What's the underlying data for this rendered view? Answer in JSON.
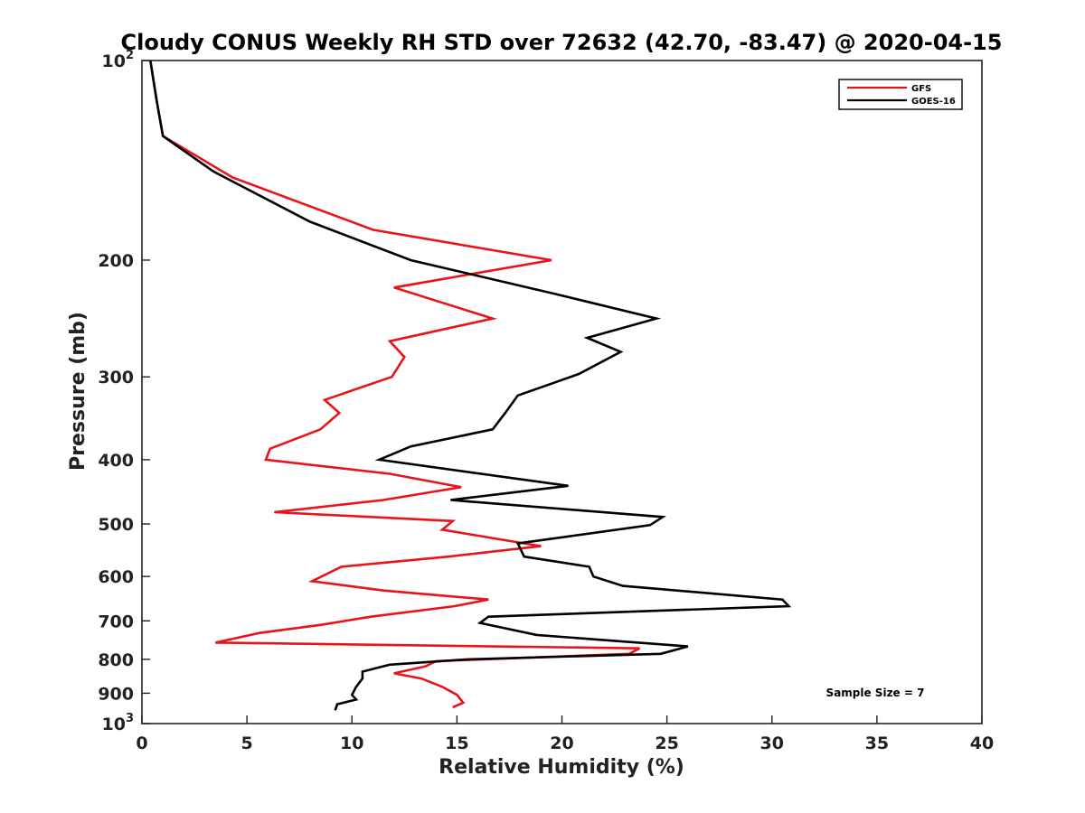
{
  "chart_data": {
    "type": "line",
    "title": "Cloudy CONUS Weekly RH STD over 72632 (42.70, -83.47) @ 2020-04-15",
    "xlabel": "Relative Humidity (%)",
    "ylabel": "Pressure (mb)",
    "xlim": [
      0,
      40
    ],
    "ylim": [
      100,
      1000
    ],
    "y_scale": "log",
    "y_inverted": true,
    "grid": false,
    "legend_position": "top-right",
    "x_ticks": [
      "0",
      "5",
      "10",
      "15",
      "20",
      "25",
      "30",
      "35",
      "40"
    ],
    "y_ticks": [
      {
        "value": 100,
        "base": "10",
        "exp": "2"
      },
      {
        "value": 200,
        "label": "200"
      },
      {
        "value": 300,
        "label": "300"
      },
      {
        "value": 400,
        "label": "400"
      },
      {
        "value": 500,
        "label": "500"
      },
      {
        "value": 600,
        "label": "600"
      },
      {
        "value": 700,
        "label": "700"
      },
      {
        "value": 800,
        "label": "800"
      },
      {
        "value": 900,
        "label": "900"
      },
      {
        "value": 1000,
        "base": "10",
        "exp": "3"
      }
    ],
    "series": [
      {
        "name": "GFS",
        "color": "#e8141a",
        "points": [
          [
            0.4,
            100
          ],
          [
            0.7,
            115
          ],
          [
            1.0,
            130
          ],
          [
            4.3,
            150
          ],
          [
            11.0,
            180
          ],
          [
            19.5,
            200
          ],
          [
            12.0,
            220
          ],
          [
            16.7,
            245
          ],
          [
            11.8,
            265
          ],
          [
            12.5,
            280
          ],
          [
            11.9,
            300
          ],
          [
            8.7,
            325
          ],
          [
            9.4,
            340
          ],
          [
            8.5,
            360
          ],
          [
            6.1,
            385
          ],
          [
            5.9,
            400
          ],
          [
            11.8,
            420
          ],
          [
            15.2,
            440
          ],
          [
            11.5,
            460
          ],
          [
            6.3,
            480
          ],
          [
            14.8,
            495
          ],
          [
            14.3,
            510
          ],
          [
            19.0,
            540
          ],
          [
            14.6,
            560
          ],
          [
            9.5,
            580
          ],
          [
            8.1,
            610
          ],
          [
            11.5,
            630
          ],
          [
            16.5,
            650
          ],
          [
            14.9,
            665
          ],
          [
            10.9,
            690
          ],
          [
            8.5,
            710
          ],
          [
            5.6,
            730
          ],
          [
            3.5,
            755
          ],
          [
            23.7,
            770
          ],
          [
            23.2,
            785
          ],
          [
            14.0,
            805
          ],
          [
            13.5,
            820
          ],
          [
            12.0,
            840
          ],
          [
            13.3,
            855
          ],
          [
            14.3,
            880
          ],
          [
            15.0,
            905
          ],
          [
            15.3,
            930
          ],
          [
            14.8,
            945
          ]
        ]
      },
      {
        "name": "GOES-16",
        "color": "#000000",
        "points": [
          [
            0.4,
            100
          ],
          [
            0.7,
            115
          ],
          [
            1.0,
            130
          ],
          [
            3.4,
            147
          ],
          [
            8.0,
            175
          ],
          [
            12.8,
            200
          ],
          [
            19.7,
            225
          ],
          [
            24.5,
            245
          ],
          [
            21.2,
            262
          ],
          [
            22.8,
            275
          ],
          [
            20.8,
            297
          ],
          [
            17.9,
            320
          ],
          [
            17.3,
            340
          ],
          [
            16.7,
            360
          ],
          [
            12.8,
            382
          ],
          [
            11.3,
            400
          ],
          [
            20.3,
            438
          ],
          [
            14.7,
            460
          ],
          [
            24.8,
            488
          ],
          [
            24.2,
            502
          ],
          [
            17.9,
            535
          ],
          [
            18.2,
            560
          ],
          [
            21.3,
            580
          ],
          [
            21.5,
            600
          ],
          [
            22.9,
            620
          ],
          [
            30.5,
            650
          ],
          [
            30.8,
            665
          ],
          [
            16.5,
            690
          ],
          [
            16.1,
            705
          ],
          [
            18.8,
            735
          ],
          [
            26.0,
            765
          ],
          [
            24.7,
            785
          ],
          [
            15.5,
            800
          ],
          [
            11.8,
            815
          ],
          [
            10.5,
            835
          ],
          [
            10.5,
            855
          ],
          [
            10.2,
            880
          ],
          [
            10.0,
            905
          ],
          [
            10.2,
            920
          ],
          [
            9.3,
            935
          ],
          [
            9.2,
            955
          ]
        ]
      }
    ],
    "annotation": "Sample Size = 7"
  }
}
